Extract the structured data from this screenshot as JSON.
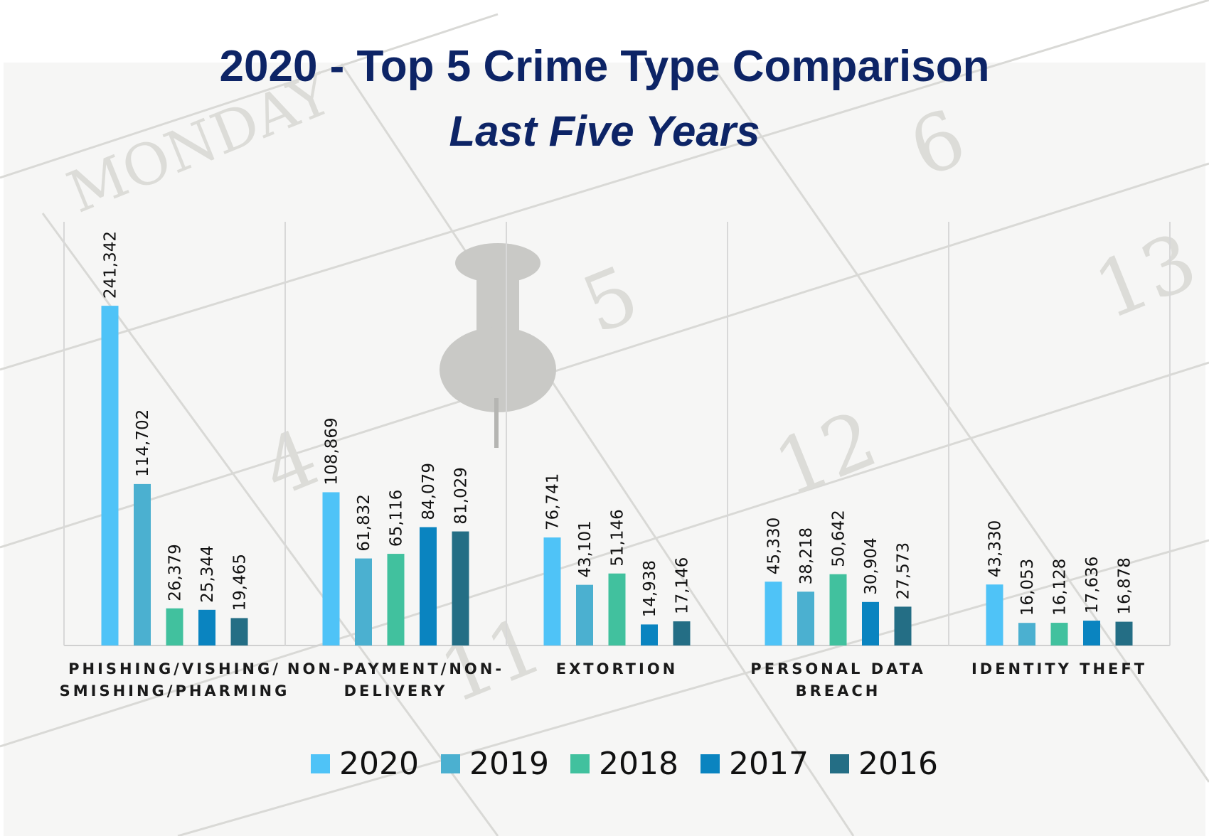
{
  "title": "2020 - Top 5 Crime Type Comparison",
  "subtitle": "Last Five Years",
  "chart_data": {
    "type": "bar",
    "categories": [
      [
        "PHISHING/VISHING/",
        "SMISHING/PHARMING"
      ],
      [
        "NON-PAYMENT/NON-",
        "DELIVERY"
      ],
      [
        "EXTORTION"
      ],
      [
        "PERSONAL DATA",
        "BREACH"
      ],
      [
        "IDENTITY THEFT"
      ]
    ],
    "series": [
      {
        "name": "2020",
        "color": "#4fc3f7",
        "values": [
          241342,
          108869,
          76741,
          45330,
          43330
        ],
        "labels": [
          "241,342",
          "108,869",
          "76,741",
          "45,330",
          "43,330"
        ]
      },
      {
        "name": "2019",
        "color": "#4bb0d0",
        "values": [
          114702,
          61832,
          43101,
          38218,
          16053
        ],
        "labels": [
          "114,702",
          "61,832",
          "43,101",
          "38,218",
          "16,053"
        ]
      },
      {
        "name": "2018",
        "color": "#41c19e",
        "values": [
          26379,
          65116,
          51146,
          50642,
          16128
        ],
        "labels": [
          "26,379",
          "65,116",
          "51,146",
          "50,642",
          "16,128"
        ]
      },
      {
        "name": "2017",
        "color": "#0a84c0",
        "values": [
          25344,
          84079,
          14938,
          30904,
          17636
        ],
        "labels": [
          "25,344",
          "84,079",
          "14,938",
          "30,904",
          "17,636"
        ]
      },
      {
        "name": "2016",
        "color": "#246e85",
        "values": [
          19465,
          81029,
          17146,
          27573,
          16878
        ],
        "labels": [
          "19,465",
          "81,029",
          "17,146",
          "27,573",
          "16,878"
        ]
      }
    ],
    "ylim": [
      0,
      300000
    ],
    "grid": false,
    "legend": "bottom"
  }
}
